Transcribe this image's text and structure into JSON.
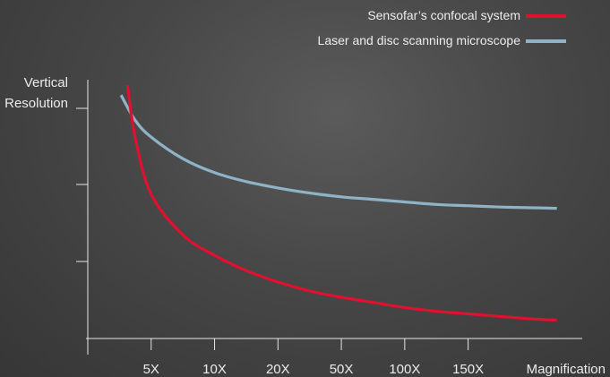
{
  "chart_data": {
    "type": "line",
    "title": "",
    "xlabel": "Magnification",
    "ylabel": [
      "Vertical",
      "Resolution"
    ],
    "categories": [
      "5X",
      "10X",
      "20X",
      "50X",
      "100X",
      "150X"
    ],
    "legend_position": "top-right",
    "y_ticks": 3,
    "y_axis_values": "not shown",
    "series": [
      {
        "name": "Sensofar’s confocal system",
        "color": "#e0102f",
        "points": [
          [
            1.25,
            99
          ],
          [
            1.5,
            78
          ],
          [
            2.0,
            56
          ],
          [
            3.0,
            40
          ],
          [
            4.0,
            32
          ],
          [
            5.0,
            26
          ],
          [
            6.0,
            21.5
          ],
          [
            7.0,
            18
          ],
          [
            8.0,
            15.5
          ],
          [
            9.0,
            13.5
          ],
          [
            10.0,
            11.5
          ],
          [
            11.0,
            10
          ],
          [
            12.0,
            9
          ],
          [
            13.0,
            8
          ],
          [
            14.0,
            7
          ],
          [
            14.8,
            6.5
          ]
        ]
      },
      {
        "name": "Laser and disc scanning microscope",
        "color": "#8fb3c6",
        "points": [
          [
            1.05,
            95
          ],
          [
            1.5,
            85
          ],
          [
            2.0,
            78.5
          ],
          [
            3.0,
            70
          ],
          [
            4.0,
            64.5
          ],
          [
            5.0,
            61
          ],
          [
            6.0,
            58.5
          ],
          [
            7.0,
            56.5
          ],
          [
            8.0,
            55
          ],
          [
            9.0,
            54
          ],
          [
            10.0,
            53
          ],
          [
            11.0,
            52
          ],
          [
            12.0,
            51.5
          ],
          [
            13.0,
            51
          ],
          [
            14.0,
            50.7
          ],
          [
            14.8,
            50.5
          ]
        ]
      }
    ]
  }
}
